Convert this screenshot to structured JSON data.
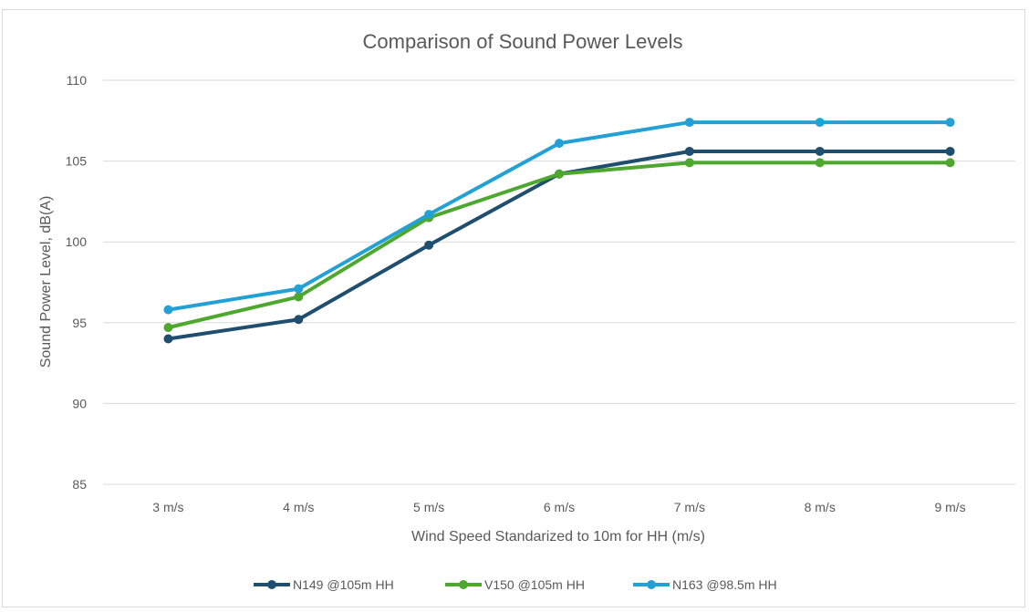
{
  "chart_data": {
    "type": "line",
    "title": "Comparison of Sound Power Levels",
    "xlabel": "Wind Speed Standarized to 10m for HH (m/s)",
    "ylabel": "Sound Power Level, dB(A)",
    "categories": [
      "3 m/s",
      "4 m/s",
      "5 m/s",
      "6 m/s",
      "7 m/s",
      "8 m/s",
      "9 m/s"
    ],
    "ylim": [
      85,
      110
    ],
    "yticks": [
      "85",
      "90",
      "95",
      "100",
      "105",
      "110"
    ],
    "grid": true,
    "legend_position": "bottom",
    "series": [
      {
        "name": "N149 @105m HH",
        "color": "#1f4e6e",
        "values": [
          94.0,
          95.2,
          99.8,
          104.2,
          105.6,
          105.6,
          105.6
        ]
      },
      {
        "name": "V150 @105m HH",
        "color": "#4ea72e",
        "values": [
          94.7,
          96.6,
          101.5,
          104.2,
          104.9,
          104.9,
          104.9
        ]
      },
      {
        "name": "N163 @98.5m HH",
        "color": "#23a0d4",
        "values": [
          95.8,
          97.1,
          101.7,
          106.1,
          107.4,
          107.4,
          107.4
        ]
      }
    ]
  }
}
